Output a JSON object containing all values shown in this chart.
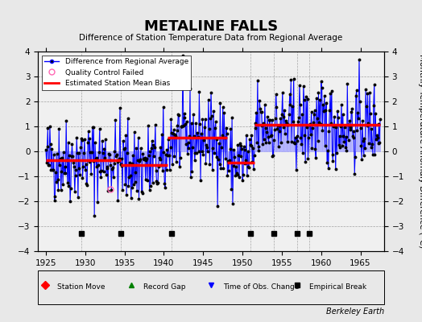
{
  "title": "METALINE FALLS",
  "subtitle": "Difference of Station Temperature Data from Regional Average",
  "ylabel": "Monthly Temperature Anomaly Difference (°C)",
  "xlabel_bottom": "Berkeley Earth",
  "xlim": [
    1924,
    1968
  ],
  "ylim": [
    -4,
    4
  ],
  "yticks": [
    -4,
    -3,
    -2,
    -1,
    0,
    1,
    2,
    3,
    4
  ],
  "xticks": [
    1925,
    1930,
    1935,
    1940,
    1945,
    1950,
    1955,
    1960,
    1965
  ],
  "background_color": "#e8e8e8",
  "plot_background": "#f0f0f0",
  "segment_biases": [
    {
      "start": 1925.0,
      "end": 1934.5,
      "bias": -0.35
    },
    {
      "start": 1934.5,
      "end": 1940.5,
      "bias": -0.55
    },
    {
      "start": 1940.5,
      "end": 1948.0,
      "bias": 0.55
    },
    {
      "start": 1948.0,
      "end": 1951.5,
      "bias": -0.45
    },
    {
      "start": 1951.5,
      "end": 1967.5,
      "bias": 1.05
    }
  ],
  "empirical_breaks": [
    1929.5,
    1934.5,
    1941.0,
    1951.0,
    1954.0,
    1957.0,
    1958.5
  ],
  "qc_failed": [
    1933.25
  ],
  "seed": 42
}
